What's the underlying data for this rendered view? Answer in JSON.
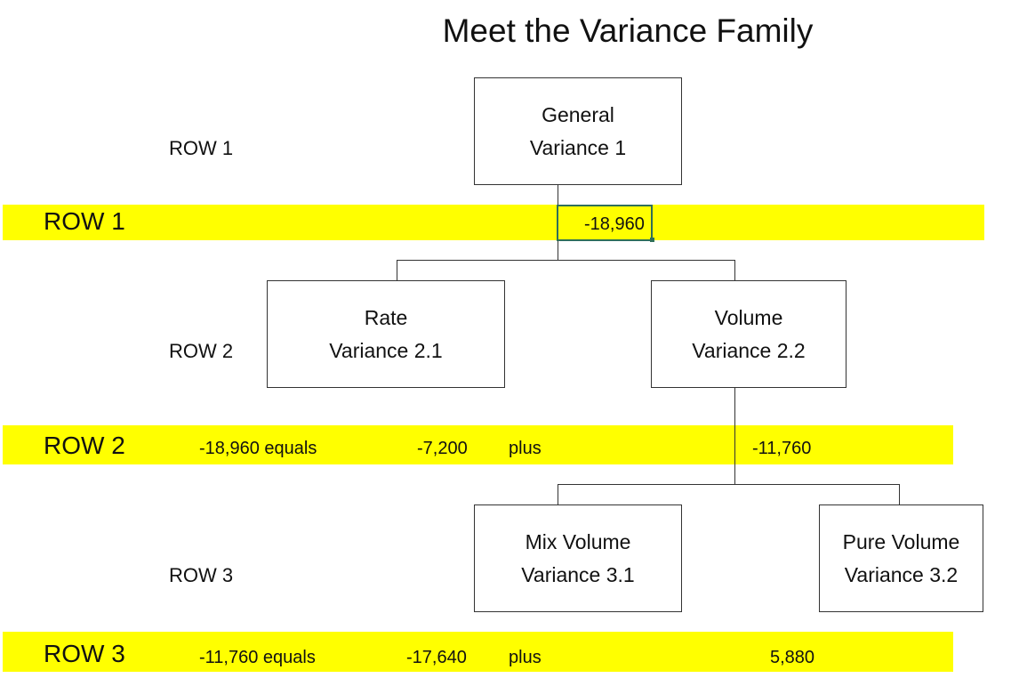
{
  "title": "Meet the Variance Family",
  "row_labels": [
    "ROW 1",
    "ROW 2",
    "ROW 3"
  ],
  "bands": [
    {
      "label": "ROW 1",
      "values": [
        "-18,960"
      ]
    },
    {
      "label": "ROW 2",
      "values": [
        "-18,960 equals",
        "-7,200",
        "plus",
        "-11,760"
      ]
    },
    {
      "label": "ROW 3",
      "values": [
        "-11,760 equals",
        "-17,640",
        "plus",
        "5,880"
      ]
    }
  ],
  "boxes": [
    {
      "line1": "General",
      "line2": "Variance 1"
    },
    {
      "line1": "Rate",
      "line2": "Variance 2.1"
    },
    {
      "line1": "Volume",
      "line2": "Variance 2.2"
    },
    {
      "line1": "Mix Volume",
      "line2": "Variance 3.1"
    },
    {
      "line1": "Pure Volume",
      "line2": "Variance 3.2"
    }
  ],
  "colors": {
    "highlight": "#ffff00",
    "selection": "#2f6f5a"
  }
}
